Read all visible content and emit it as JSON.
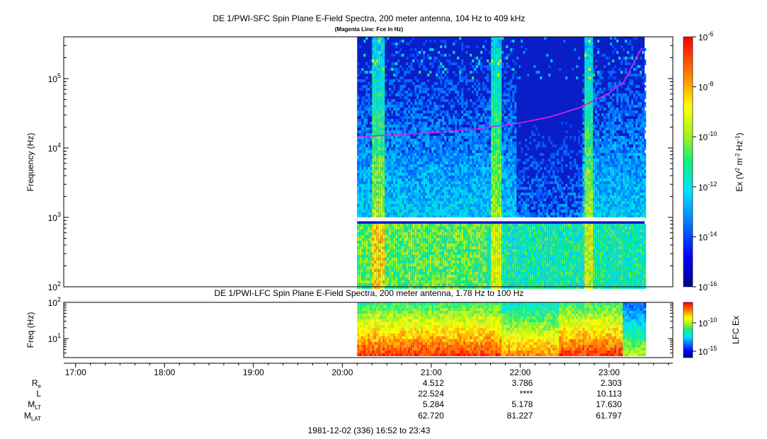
{
  "chart_data": [
    {
      "type": "heatmap",
      "title": "DE 1/PWI-SFC  Spin Plane E-Field Spectra, 200 meter antenna, 104 Hz to 409 kHz",
      "subtitle": "(Magenta Line: Fce in Hz)",
      "ylabel": "Frequency (Hz)",
      "yscale": "log",
      "ylim": [
        100,
        400000
      ],
      "yticks": [
        {
          "value": 100,
          "base": "10",
          "exp": "2"
        },
        {
          "value": 1000,
          "base": "10",
          "exp": "3"
        },
        {
          "value": 10000,
          "base": "10",
          "exp": "4"
        },
        {
          "value": 100000,
          "base": "10",
          "exp": "5"
        }
      ],
      "data_start": "20:10",
      "data_end": "23:24",
      "fce_series": {
        "color": "#e020e0",
        "points": [
          [
            "20:10",
            14500
          ],
          [
            "20:30",
            15300
          ],
          [
            "21:00",
            16600
          ],
          [
            "21:30",
            18800
          ],
          [
            "22:00",
            23000
          ],
          [
            "22:20",
            28000
          ],
          [
            "22:40",
            38000
          ],
          [
            "23:00",
            62000
          ],
          [
            "23:10",
            90000
          ],
          [
            "23:22",
            280000
          ]
        ]
      },
      "colorbar": {
        "label_parts": [
          "Ex (V",
          "2",
          " m",
          "-2",
          " Hz",
          "-1",
          ")"
        ],
        "scale": "log",
        "range": [
          1e-16,
          1e-06
        ],
        "ticks": [
          {
            "base": "10",
            "exp": "-6"
          },
          {
            "base": "10",
            "exp": "-8"
          },
          {
            "base": "10",
            "exp": "-10"
          },
          {
            "base": "10",
            "exp": "-12"
          },
          {
            "base": "10",
            "exp": "-14"
          },
          {
            "base": "10",
            "exp": "-16"
          }
        ]
      }
    },
    {
      "type": "heatmap",
      "title": "DE 1/PWI-LFC  Spin Plane E-Field Spectra, 200 meter antenna, 1.78 Hz to 100 Hz",
      "ylabel": "Freq (Hz)",
      "yscale": "log",
      "ylim": [
        3,
        100
      ],
      "yticks": [
        {
          "value": 10,
          "base": "10",
          "exp": "1"
        },
        {
          "value": 100,
          "base": "10",
          "exp": "2"
        }
      ],
      "data_start": "20:10",
      "data_end": "23:24",
      "colorbar": {
        "label": "LFC Ex",
        "ticks": [
          {
            "base": "10",
            "exp": "-10"
          },
          {
            "base": "10",
            "exp": "-15"
          }
        ]
      }
    }
  ],
  "x_axis": {
    "range": [
      "16:52",
      "23:43"
    ],
    "ticks": [
      "17:00",
      "18:00",
      "19:00",
      "20:00",
      "21:00",
      "22:00",
      "23:00"
    ]
  },
  "ephemeris": {
    "rows": [
      {
        "label": "R",
        "sub": "e",
        "values": [
          "4.512",
          "3.786",
          "2.303"
        ]
      },
      {
        "label": "L",
        "sub": "",
        "values": [
          "22.524",
          "****",
          "10.113"
        ]
      },
      {
        "label": "M",
        "sub": "LT",
        "values": [
          "5.284",
          "5.178",
          "17.630"
        ]
      },
      {
        "label": "M",
        "sub": "LAT",
        "values": [
          "62.720",
          "81.227",
          "61.797"
        ]
      }
    ],
    "times": [
      "21:00",
      "22:00",
      "23:00"
    ]
  },
  "footer": "1981-12-02 (336) 16:52 to 23:43"
}
